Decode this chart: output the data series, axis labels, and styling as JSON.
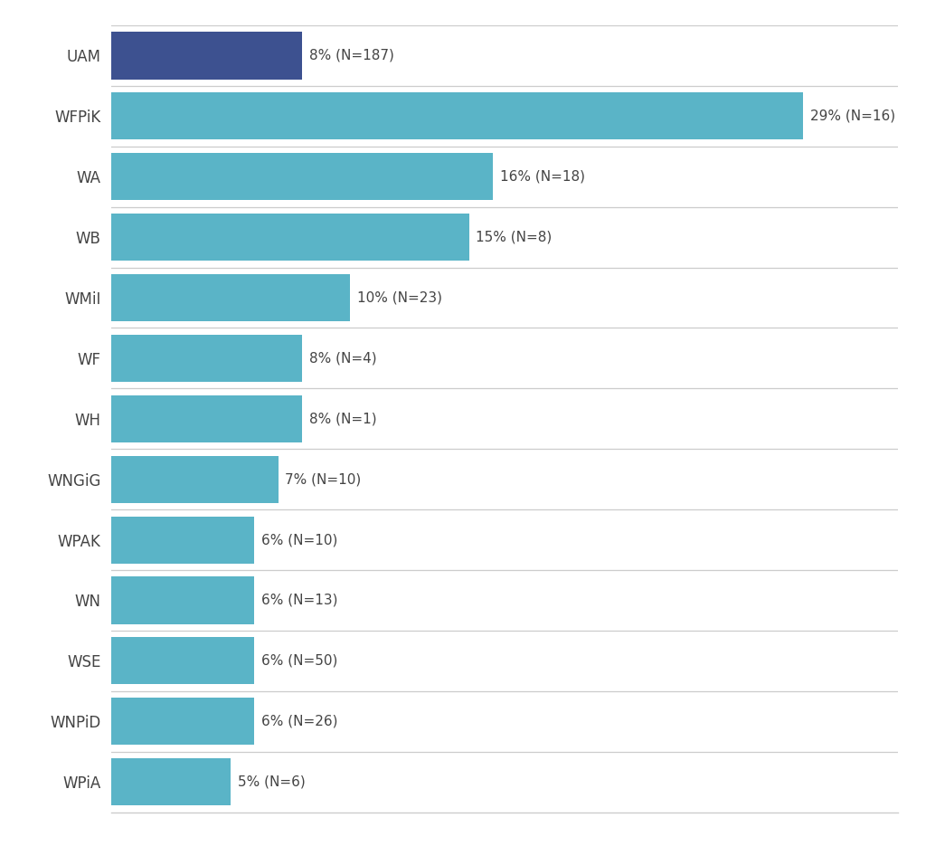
{
  "categories": [
    "UAM",
    "WFPiK",
    "WA",
    "WB",
    "WMiI",
    "WF",
    "WH",
    "WNGiG",
    "WPAK",
    "WN",
    "WSE",
    "WNPiD",
    "WPiA"
  ],
  "values": [
    8,
    29,
    16,
    15,
    10,
    8,
    8,
    7,
    6,
    6,
    6,
    6,
    5
  ],
  "n_values": [
    187,
    16,
    18,
    8,
    23,
    4,
    1,
    10,
    10,
    13,
    50,
    26,
    6
  ],
  "bar_colors": [
    "#3d5190",
    "#5ab4c7",
    "#5ab4c7",
    "#5ab4c7",
    "#5ab4c7",
    "#5ab4c7",
    "#5ab4c7",
    "#5ab4c7",
    "#5ab4c7",
    "#5ab4c7",
    "#5ab4c7",
    "#5ab4c7",
    "#5ab4c7"
  ],
  "label_fontsize": 11,
  "ytick_fontsize": 12,
  "background_color": "#ffffff",
  "plot_bg_color": "#ffffff",
  "bar_height": 0.78,
  "xlim": [
    0,
    33
  ],
  "separator_color": "#cccccc",
  "text_color": "#444444"
}
